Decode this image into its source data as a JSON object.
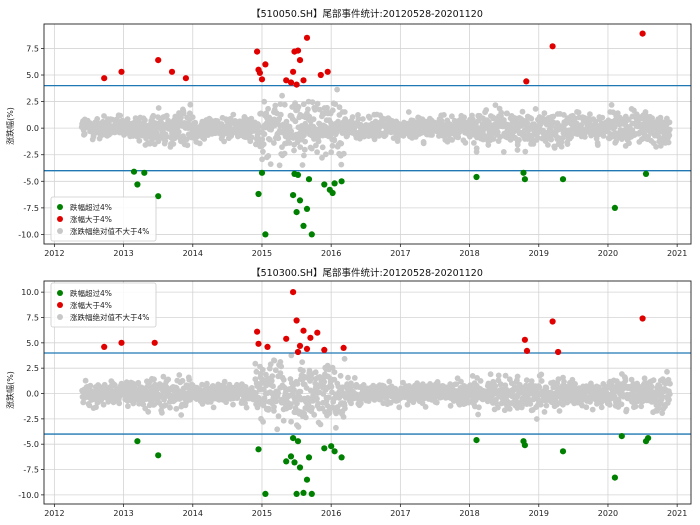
{
  "colors": {
    "fall": "#008000",
    "rise": "#e00000",
    "other": "#c8c8c8",
    "threshold": "#1f77b4",
    "grid": "#d4d4d4",
    "frame": "#222222"
  },
  "chart_data": [
    {
      "type": "scatter",
      "title": "【510050.SH】尾部事件统计:20120528-20201120",
      "ylabel": "涨跌幅(%)",
      "xlabel": "",
      "xlim": [
        2011.85,
        2021.2
      ],
      "ylim": [
        -10.9,
        9.8
      ],
      "grid": true,
      "legend_position": "bottom-left",
      "x_ticks": [
        2012,
        2013,
        2014,
        2015,
        2016,
        2017,
        2018,
        2019,
        2020,
        2021
      ],
      "x_tick_labels": [
        "2012",
        "2013",
        "2014",
        "2015",
        "2016",
        "2017",
        "2018",
        "2019",
        "2020",
        "2021"
      ],
      "y_ticks": [
        -10.0,
        -7.5,
        -5.0,
        -2.5,
        0.0,
        2.5,
        5.0,
        7.5
      ],
      "y_tick_labels": [
        "-10.0",
        "-7.5",
        "-5.0",
        "-2.5",
        "0.0",
        "2.5",
        "5.0",
        "7.5"
      ],
      "thresholds": [
        4,
        -4
      ],
      "cloud": {
        "x_range": [
          2012.4,
          2020.9
        ],
        "abs_limit": 4
      },
      "series": [
        {
          "name": "跌幅超过4%",
          "role": "fall",
          "x": [
            2013.15,
            2013.2,
            2013.3,
            2013.5,
            2014.95,
            2015.0,
            2015.05,
            2015.45,
            2015.47,
            2015.5,
            2015.52,
            2015.55,
            2015.6,
            2015.65,
            2015.68,
            2015.72,
            2015.9,
            2015.98,
            2016.02,
            2016.05,
            2016.15,
            2018.1,
            2018.78,
            2018.8,
            2019.35,
            2020.1,
            2020.55
          ],
          "y": [
            -4.1,
            -5.3,
            -4.2,
            -6.4,
            -6.2,
            -4.2,
            -10.0,
            -6.3,
            -4.3,
            -7.9,
            -4.4,
            -6.8,
            -9.2,
            -7.6,
            -4.8,
            -10.0,
            -5.3,
            -5.8,
            -6.1,
            -5.2,
            -5.0,
            -4.6,
            -4.2,
            -4.8,
            -4.8,
            -7.5,
            -4.3
          ]
        },
        {
          "name": "涨幅大于4%",
          "role": "rise",
          "x": [
            2012.72,
            2012.97,
            2013.5,
            2013.7,
            2013.9,
            2014.93,
            2014.95,
            2014.97,
            2015.0,
            2015.05,
            2015.35,
            2015.42,
            2015.45,
            2015.47,
            2015.5,
            2015.52,
            2015.55,
            2015.6,
            2015.65,
            2015.85,
            2015.95,
            2018.82,
            2019.2,
            2020.5
          ],
          "y": [
            4.7,
            5.3,
            6.4,
            5.3,
            4.7,
            7.2,
            5.5,
            5.2,
            4.6,
            6.0,
            4.5,
            4.3,
            5.3,
            7.2,
            4.1,
            7.3,
            6.4,
            4.5,
            8.5,
            5.0,
            5.3,
            4.4,
            7.7,
            8.9
          ]
        },
        {
          "name": "涨跌幅绝对值不大于4%",
          "role": "other"
        }
      ]
    },
    {
      "type": "scatter",
      "title": "【510300.SH】尾部事件统计:20120528-20201120",
      "ylabel": "涨跌幅(%)",
      "xlabel": "",
      "xlim": [
        2011.85,
        2021.2
      ],
      "ylim": [
        -10.9,
        11.1
      ],
      "grid": true,
      "legend_position": "top-left",
      "x_ticks": [
        2012,
        2013,
        2014,
        2015,
        2016,
        2017,
        2018,
        2019,
        2020,
        2021
      ],
      "x_tick_labels": [
        "2012",
        "2013",
        "2014",
        "2015",
        "2016",
        "2017",
        "2018",
        "2019",
        "2020",
        "2021"
      ],
      "y_ticks": [
        -10.0,
        -7.5,
        -5.0,
        -2.5,
        0.0,
        2.5,
        5.0,
        7.5,
        10.0
      ],
      "y_tick_labels": [
        "-10.0",
        "-7.5",
        "-5.0",
        "-2.5",
        "0.0",
        "2.5",
        "5.0",
        "7.5",
        "10.0"
      ],
      "thresholds": [
        4,
        -4
      ],
      "cloud": {
        "x_range": [
          2012.4,
          2020.9
        ],
        "abs_limit": 4
      },
      "series": [
        {
          "name": "跌幅超过4%",
          "role": "fall",
          "x": [
            2013.2,
            2013.5,
            2014.95,
            2015.05,
            2015.35,
            2015.42,
            2015.45,
            2015.47,
            2015.5,
            2015.52,
            2015.55,
            2015.6,
            2015.65,
            2015.68,
            2015.72,
            2015.9,
            2016.0,
            2016.05,
            2016.15,
            2018.1,
            2018.78,
            2018.8,
            2019.35,
            2020.1,
            2020.2,
            2020.55,
            2020.58
          ],
          "y": [
            -4.7,
            -6.1,
            -5.5,
            -9.9,
            -6.7,
            -6.2,
            -4.4,
            -6.8,
            -9.9,
            -4.7,
            -7.3,
            -9.8,
            -8.5,
            -6.3,
            -9.9,
            -5.4,
            -5.2,
            -5.7,
            -6.3,
            -4.6,
            -4.7,
            -5.1,
            -5.7,
            -8.3,
            -4.2,
            -4.7,
            -4.4
          ],
          "note": ""
        },
        {
          "name": "涨幅大于4%",
          "role": "rise",
          "x": [
            2012.72,
            2012.97,
            2013.45,
            2014.93,
            2014.95,
            2015.08,
            2015.35,
            2015.45,
            2015.5,
            2015.52,
            2015.55,
            2015.6,
            2015.65,
            2015.7,
            2015.8,
            2015.9,
            2016.18,
            2018.8,
            2018.83,
            2019.2,
            2019.28,
            2020.5
          ],
          "y": [
            4.6,
            5.0,
            5.0,
            6.1,
            4.9,
            4.6,
            5.4,
            10.0,
            7.2,
            4.1,
            4.7,
            6.2,
            4.4,
            5.5,
            6.0,
            4.3,
            4.5,
            5.3,
            4.2,
            7.1,
            4.1,
            7.4
          ]
        },
        {
          "name": "涨跌幅绝对值不大于4%",
          "role": "other"
        }
      ]
    }
  ]
}
